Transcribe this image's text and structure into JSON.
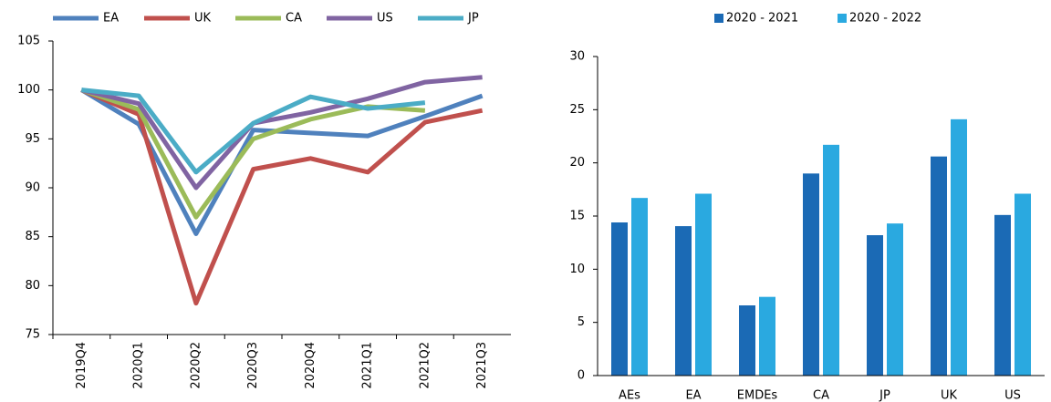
{
  "chart_data": [
    {
      "type": "line",
      "categories": [
        "2019Q4",
        "2020Q1",
        "2020Q2",
        "2020Q3",
        "2020Q4",
        "2021Q1",
        "2021Q2",
        "2021Q3"
      ],
      "series": [
        {
          "name": "EA",
          "color": "#4f81bd",
          "values": [
            100,
            96.5,
            85.3,
            95.9,
            95.6,
            95.3,
            97.3,
            99.4
          ]
        },
        {
          "name": "UK",
          "color": "#c0504d",
          "values": [
            100,
            97.5,
            78.2,
            91.9,
            93.0,
            91.6,
            96.7,
            97.9
          ]
        },
        {
          "name": "CA",
          "color": "#9bbb59",
          "values": [
            100,
            98.0,
            87.0,
            95.0,
            97.0,
            98.3,
            97.9,
            null
          ]
        },
        {
          "name": "US",
          "color": "#8064a2",
          "values": [
            100,
            98.6,
            90.0,
            96.6,
            97.7,
            99.1,
            100.8,
            101.3
          ]
        },
        {
          "name": "JP",
          "color": "#4bacc6",
          "values": [
            100,
            99.4,
            91.6,
            96.6,
            99.3,
            98.1,
            98.7,
            null
          ]
        }
      ],
      "ylim": [
        75,
        105
      ],
      "yticks": [
        75,
        80,
        85,
        90,
        95,
        100,
        105
      ]
    },
    {
      "type": "bar",
      "categories": [
        "AEs",
        "EA",
        "EMDEs",
        "CA",
        "JP",
        "UK",
        "US"
      ],
      "series": [
        {
          "name": "2020 - 2021",
          "color": "#1b6ab5",
          "values": [
            14.4,
            14.05,
            6.6,
            19.0,
            13.2,
            20.6,
            15.1
          ]
        },
        {
          "name": "2020 - 2022",
          "color": "#2aa9e0",
          "values": [
            16.7,
            17.1,
            7.4,
            21.7,
            14.3,
            24.1,
            17.1
          ]
        }
      ],
      "ylim": [
        0,
        30
      ],
      "yticks": [
        0,
        5,
        10,
        15,
        20,
        25,
        30
      ]
    }
  ]
}
